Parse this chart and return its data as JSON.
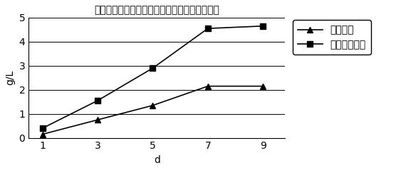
{
  "title": "不同培养时间对油脂产量和生物质干重量的影响",
  "xlabel": "d",
  "ylabel": "g/L",
  "x": [
    1,
    3,
    5,
    7,
    9
  ],
  "oil_yield": [
    0.15,
    0.75,
    1.35,
    2.15,
    2.15
  ],
  "biomass": [
    0.4,
    1.55,
    2.9,
    4.55,
    4.65
  ],
  "legend_oil": "油脂产量",
  "legend_biomass": "生物质干重量",
  "ylim": [
    0,
    5
  ],
  "yticks": [
    0,
    1,
    2,
    3,
    4,
    5
  ],
  "xticks": [
    1,
    3,
    5,
    7,
    9
  ],
  "line_color": "#000000",
  "background_color": "#ffffff",
  "title_fontsize": 11,
  "axis_fontsize": 10,
  "legend_fontsize": 9
}
